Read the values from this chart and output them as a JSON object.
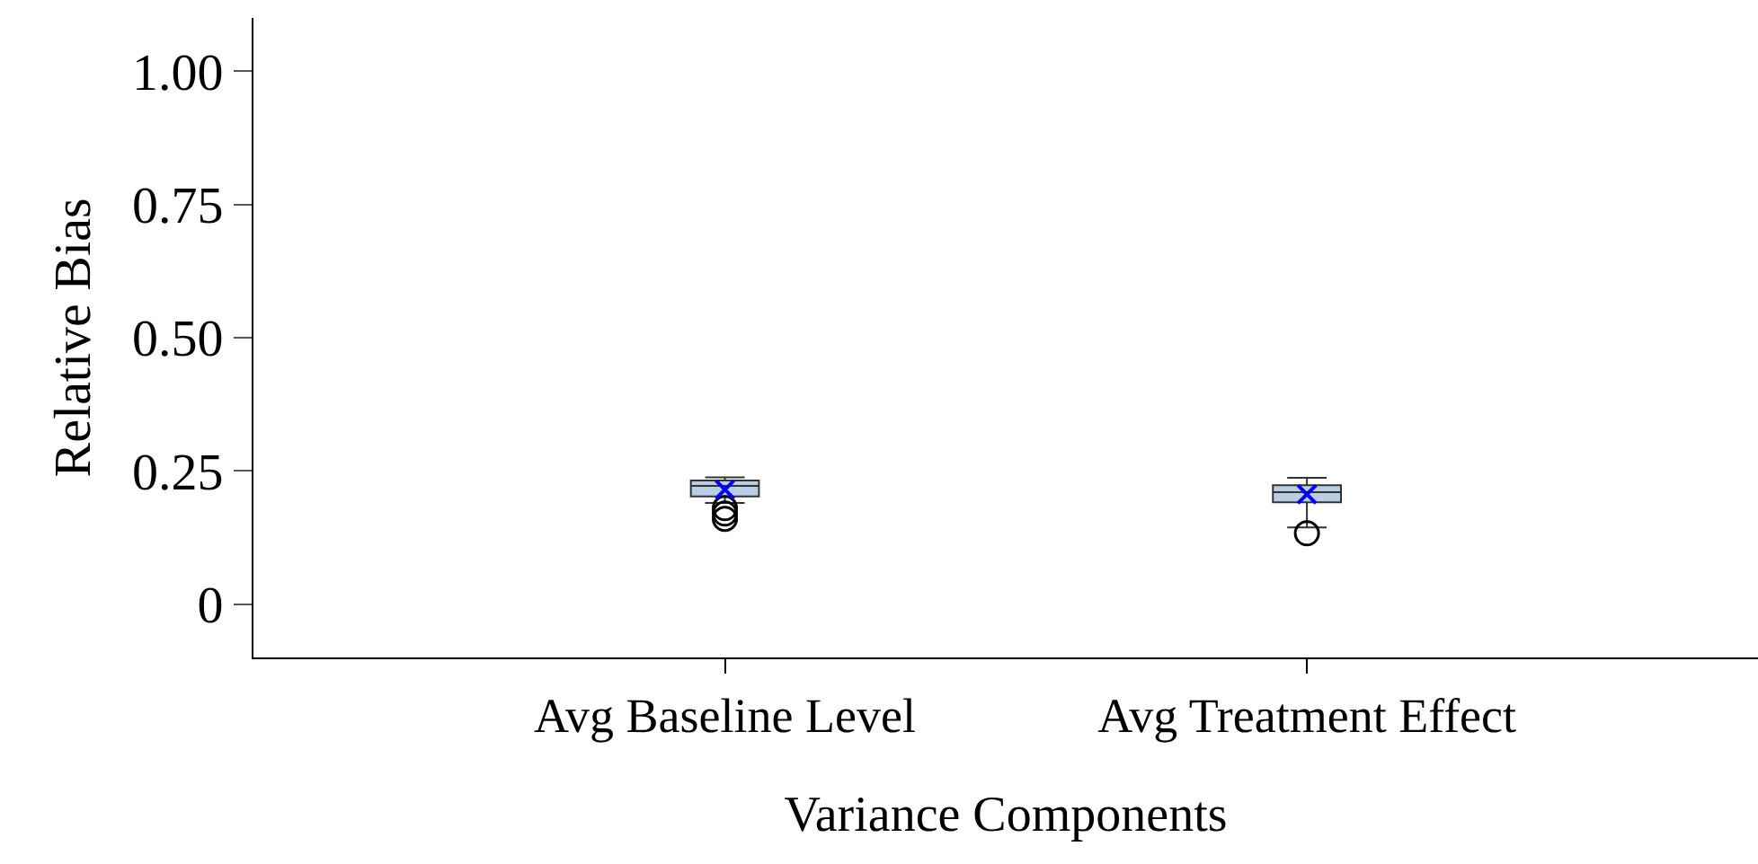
{
  "chart_data": {
    "type": "box",
    "xlabel": "Variance Components",
    "ylabel": "Relative Bias",
    "categories": [
      "Avg Baseline Level",
      "Avg Treatment Effect"
    ],
    "series": [
      {
        "color": "#b9cde5",
        "boxes": [
          {
            "low": 0.19,
            "q1": 0.202,
            "median": 0.222,
            "q3": 0.232,
            "high": 0.238,
            "mean": 0.215,
            "outliers": [
              0.18,
              0.17,
              0.16
            ]
          },
          {
            "low": 0.144,
            "q1": 0.191,
            "median": 0.21,
            "q3": 0.223,
            "high": 0.237,
            "mean": 0.206,
            "outliers": [
              0.133
            ]
          }
        ]
      }
    ],
    "ylim": [
      -0.1,
      1.1
    ],
    "yticks": [
      0,
      0.25,
      {
        "value": 0.5,
        "label": "0.50"
      },
      0.75,
      {
        "value": 1,
        "label": "1.00"
      }
    ],
    "grid": false
  }
}
